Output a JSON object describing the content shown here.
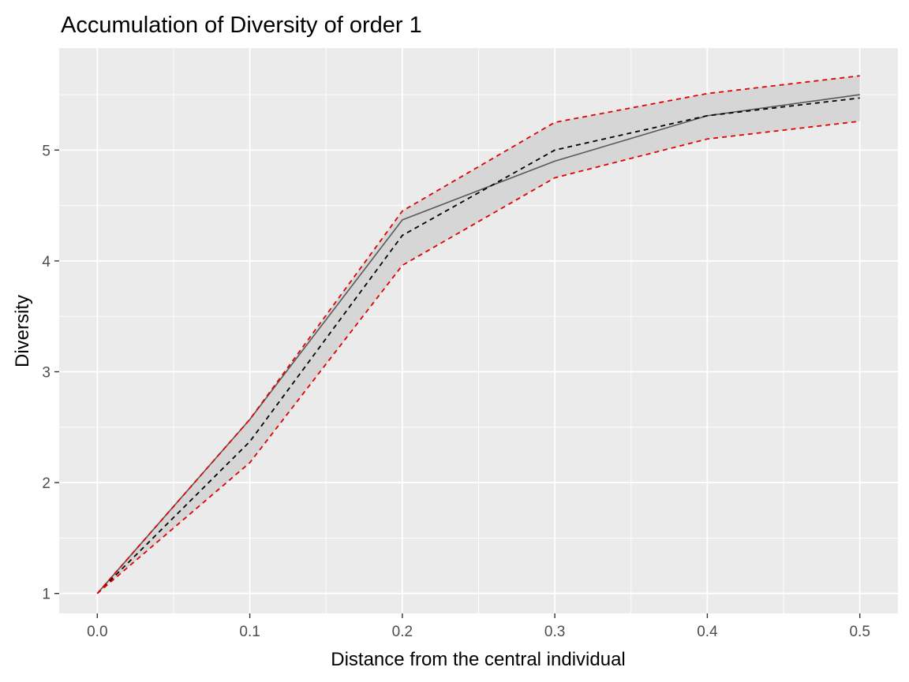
{
  "chart_data": {
    "type": "line",
    "title": "Accumulation of Diversity of order 1",
    "xlabel": "Distance from the central individual",
    "ylabel": "Diversity",
    "xlim": [
      -0.025,
      0.525
    ],
    "ylim": [
      0.82,
      5.92
    ],
    "x_ticks": [
      "0.0",
      "0.1",
      "0.2",
      "0.3",
      "0.4",
      "0.5"
    ],
    "y_ticks": [
      "1",
      "2",
      "3",
      "4",
      "5"
    ],
    "x": [
      0.0,
      0.1,
      0.2,
      0.3,
      0.4,
      0.5
    ],
    "grid": true,
    "legend": "none",
    "series": [
      {
        "style": "solid-grey",
        "values": [
          1.0,
          2.57,
          4.37,
          4.9,
          5.31,
          5.5
        ]
      },
      {
        "style": "dashed-black",
        "values": [
          1.0,
          2.37,
          4.23,
          5.0,
          5.31,
          5.47
        ]
      },
      {
        "style": "dashed-red-upper",
        "values": [
          1.0,
          2.57,
          4.45,
          5.25,
          5.51,
          5.67
        ]
      },
      {
        "style": "dashed-red-lower",
        "values": [
          1.0,
          2.18,
          3.96,
          4.75,
          5.1,
          5.26
        ]
      }
    ],
    "band": {
      "lower_series": 3,
      "upper_series": 2
    },
    "colors": {
      "panel_bg": "#ebebeb",
      "grid": "#ffffff",
      "band": "#d6d6d6",
      "observed": "#595959",
      "null_mean": "#000000",
      "envelope": "#e00000"
    }
  }
}
